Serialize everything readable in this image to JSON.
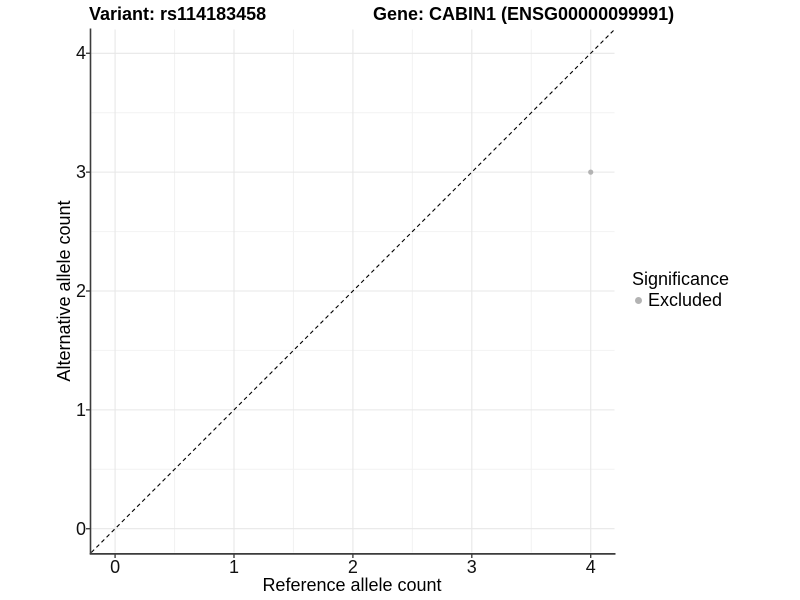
{
  "titles": {
    "variant": "Variant: rs114183458",
    "gene": "Gene: CABIN1 (ENSG00000099991)"
  },
  "legend": {
    "title": "Significance",
    "items": [
      {
        "label": "Excluded",
        "color": "#b3b3b3"
      }
    ]
  },
  "colors": {
    "background": "#ffffff",
    "grid_major": "#e7e7e7",
    "grid_minor": "#f2f2f2",
    "axis": "#3c3c3c",
    "tick": "#333333",
    "identity_line": "#000000",
    "point": "#b3b3b3",
    "text": "#000000"
  },
  "chart_data": {
    "type": "scatter",
    "title_left": "Variant: rs114183458",
    "title_right": "Gene: CABIN1 (ENSG00000099991)",
    "xlabel": "Reference allele count",
    "ylabel": "Alternative allele count",
    "xlim": [
      -0.2,
      4.2
    ],
    "ylim": [
      -0.2,
      4.2
    ],
    "x_ticks": [
      0,
      1,
      2,
      3,
      4
    ],
    "y_ticks": [
      0,
      1,
      2,
      3,
      4
    ],
    "x_minor_ticks": [
      0.5,
      1.5,
      2.5,
      3.5
    ],
    "y_minor_ticks": [
      0.5,
      1.5,
      2.5,
      3.5
    ],
    "grid": true,
    "legend_position": "right",
    "identity_line": {
      "style": "dashed",
      "slope": 1,
      "intercept": 0
    },
    "series": [
      {
        "name": "Excluded",
        "color": "#b3b3b3",
        "points": [
          {
            "x": 4,
            "y": 3
          }
        ]
      }
    ]
  }
}
